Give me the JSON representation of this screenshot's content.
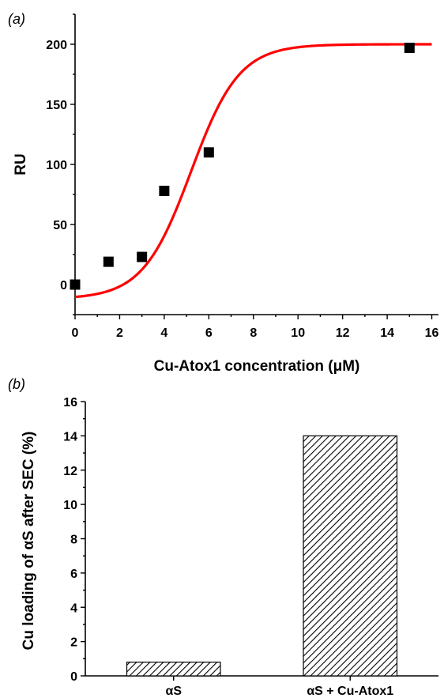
{
  "chart_data": [
    {
      "type": "scatter",
      "panel_label": "(a)",
      "xlabel": "Cu-Atox1 concentration (μM)",
      "ylabel": "RU",
      "xlim": [
        0,
        16.3
      ],
      "ylim": [
        -25,
        225
      ],
      "x_ticks": [
        "0",
        "2",
        "4",
        "6",
        "8",
        "10",
        "12",
        "14",
        "16"
      ],
      "y_ticks": [
        "0",
        "50",
        "100",
        "150",
        "200"
      ],
      "grid": false,
      "series": [
        {
          "marker": "square",
          "color": "#000000",
          "x": [
            0,
            1.5,
            3,
            4,
            6,
            15
          ],
          "y": [
            0,
            19,
            23,
            78,
            110,
            197
          ]
        }
      ],
      "fit": {
        "type": "sigmoid",
        "color": "#ff0000",
        "xrange": [
          0,
          16
        ],
        "bottom": -12,
        "top": 200,
        "x50": 5.2,
        "slope": 1.85
      }
    },
    {
      "type": "bar",
      "panel_label": "(b)",
      "xlabel": "",
      "ylabel": "Cu loading of αS after SEC (%)",
      "ylim": [
        0,
        16
      ],
      "y_ticks": [
        "0",
        "2",
        "4",
        "6",
        "8",
        "10",
        "12",
        "14",
        "16"
      ],
      "categories": [
        "αS",
        "αS + Cu-Atox1"
      ],
      "values": [
        0.8,
        14
      ],
      "pattern": "diagonal-hatch",
      "color": "#000000"
    }
  ]
}
